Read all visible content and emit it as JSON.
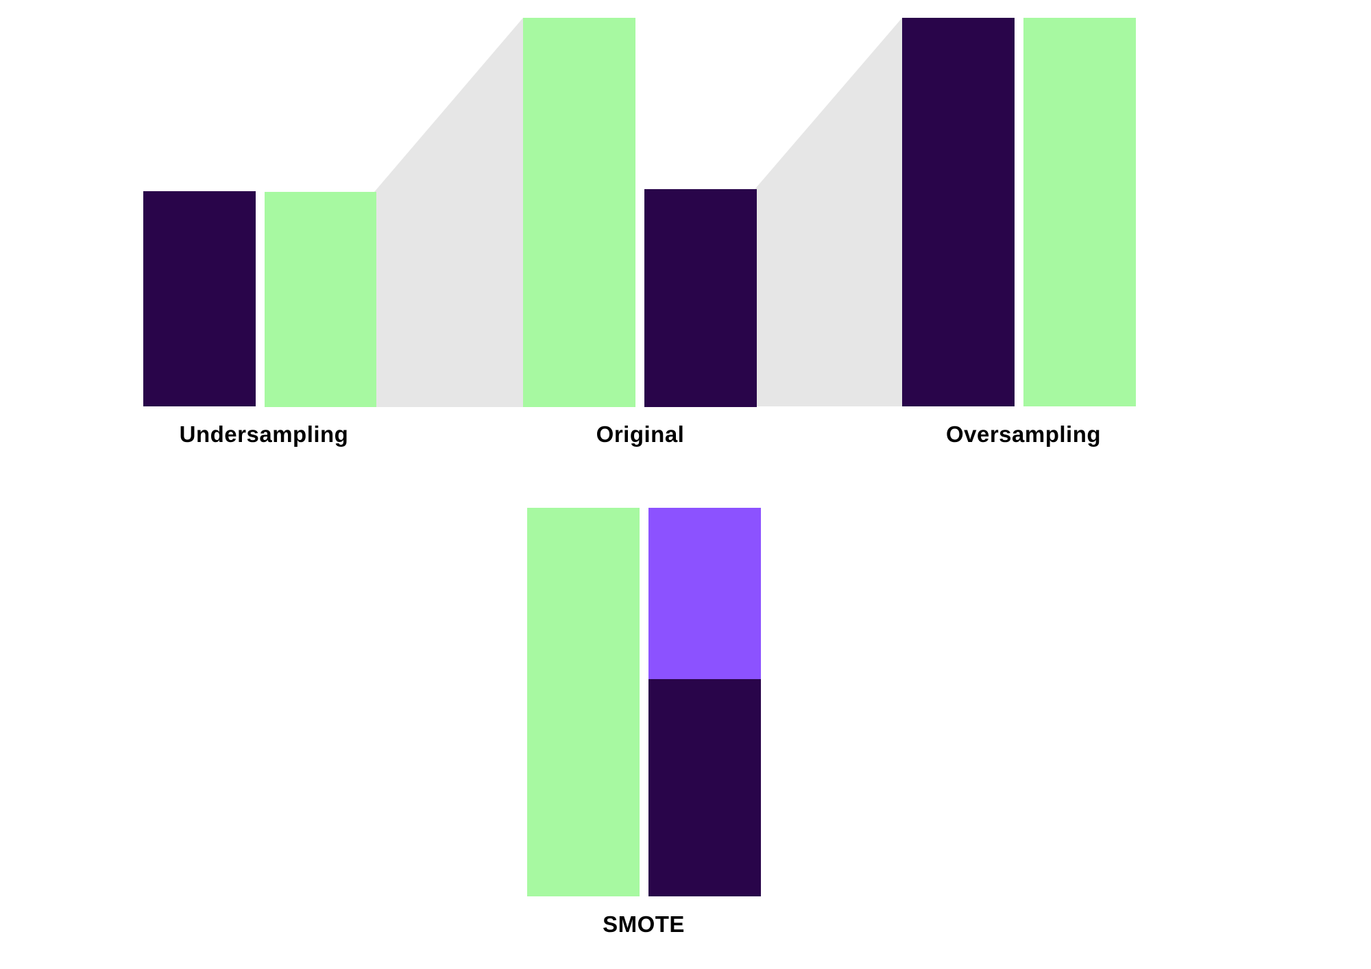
{
  "colors": {
    "majority": "#A7F9A1",
    "minority": "#29054A",
    "synthetic": "#8C52FF",
    "connector": "#E6E6E6",
    "label": "#000000",
    "background": "#FFFFFF"
  },
  "groups": {
    "undersampling": {
      "label": "Undersampling",
      "minority_level": 0.55,
      "majority_level": 0.55
    },
    "original": {
      "label": "Original",
      "majority_level": 1.0,
      "minority_level": 0.56
    },
    "oversampling": {
      "label": "Oversampling",
      "minority_level": 1.0,
      "majority_level": 1.0
    },
    "smote": {
      "label": "SMOTE",
      "majority_level": 1.0,
      "minority_level": 0.56,
      "synthetic_level": 0.44
    }
  }
}
